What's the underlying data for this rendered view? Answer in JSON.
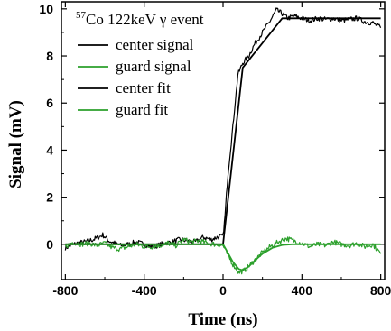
{
  "chart_data": {
    "type": "line",
    "title": {
      "superscript": "57",
      "text": "Co 122keV γ event"
    },
    "xlabel": "Time (ns)",
    "ylabel": "Signal (mV)",
    "xlim": [
      -820,
      820
    ],
    "ylim": [
      -1.5,
      10.3
    ],
    "xticks": [
      -800,
      -400,
      0,
      400,
      800
    ],
    "yticks": [
      0,
      2,
      4,
      6,
      8,
      10
    ],
    "xtick_labels": [
      "-800",
      "-400",
      "0",
      "400",
      "800"
    ],
    "ytick_labels": [
      "0",
      "2",
      "4",
      "6",
      "8",
      "10"
    ],
    "grid": false,
    "legend": "top-left",
    "series": [
      {
        "name": "center signal",
        "color": "#000000",
        "style": "noisy",
        "x": [
          -800,
          -740,
          -700,
          -660,
          -630,
          -610,
          -580,
          -550,
          -520,
          -480,
          -440,
          -400,
          -370,
          -330,
          -300,
          -260,
          -220,
          -180,
          -140,
          -100,
          -60,
          -30,
          0,
          10,
          25,
          50,
          75,
          100,
          130,
          160,
          200,
          240,
          270,
          300,
          330,
          360,
          400,
          440,
          480,
          520,
          560,
          600,
          640,
          680,
          720,
          760,
          800
        ],
        "y": [
          -0.15,
          0.05,
          0.1,
          0.2,
          0.3,
          0.4,
          0.15,
          0.05,
          -0.05,
          0.0,
          0.1,
          0.0,
          -0.1,
          -0.05,
          0.05,
          0.1,
          0.2,
          0.15,
          0.1,
          0.3,
          0.2,
          0.3,
          0.35,
          1.2,
          3.0,
          5.0,
          7.2,
          7.7,
          8.0,
          8.5,
          9.0,
          9.5,
          9.95,
          9.8,
          9.6,
          9.7,
          9.6,
          9.5,
          9.6,
          9.55,
          9.6,
          9.5,
          9.55,
          9.6,
          9.45,
          9.4,
          9.2
        ]
      },
      {
        "name": "guard signal",
        "color": "#2ca02c",
        "style": "noisy",
        "x": [
          -800,
          -760,
          -720,
          -680,
          -640,
          -600,
          -560,
          -520,
          -480,
          -440,
          -400,
          -360,
          -320,
          -280,
          -240,
          -200,
          -160,
          -120,
          -80,
          -40,
          0,
          20,
          50,
          80,
          110,
          140,
          170,
          200,
          240,
          280,
          320,
          360,
          400,
          440,
          480,
          520,
          560,
          600,
          640,
          680,
          720,
          760,
          800
        ],
        "y": [
          -0.1,
          0.1,
          0.0,
          0.05,
          -0.05,
          0.05,
          -0.15,
          -0.2,
          -0.1,
          0.0,
          -0.1,
          -0.1,
          -0.05,
          0.05,
          -0.05,
          0.2,
          0.1,
          0.15,
          0.05,
          0.0,
          -0.05,
          -0.4,
          -0.85,
          -1.2,
          -1.1,
          -0.85,
          -0.6,
          -0.35,
          -0.1,
          0.1,
          0.25,
          0.15,
          0.05,
          -0.1,
          0.0,
          -0.05,
          0.1,
          0.0,
          -0.05,
          0.05,
          -0.1,
          0.0,
          -0.4
        ]
      },
      {
        "name": "center fit",
        "color": "#000000",
        "style": "smooth",
        "x": [
          -800,
          0,
          100,
          300,
          800
        ],
        "y": [
          0.0,
          0.0,
          7.5,
          9.6,
          9.6
        ]
      },
      {
        "name": "guard fit",
        "color": "#2ca02c",
        "style": "smooth",
        "x": [
          -800,
          0,
          20,
          50,
          80,
          100,
          130,
          160,
          200,
          250,
          300,
          350,
          400,
          800
        ],
        "y": [
          0.0,
          0.0,
          -0.3,
          -0.75,
          -1.05,
          -1.1,
          -0.95,
          -0.7,
          -0.4,
          -0.15,
          -0.03,
          0.0,
          0.0,
          0.0
        ]
      }
    ]
  }
}
